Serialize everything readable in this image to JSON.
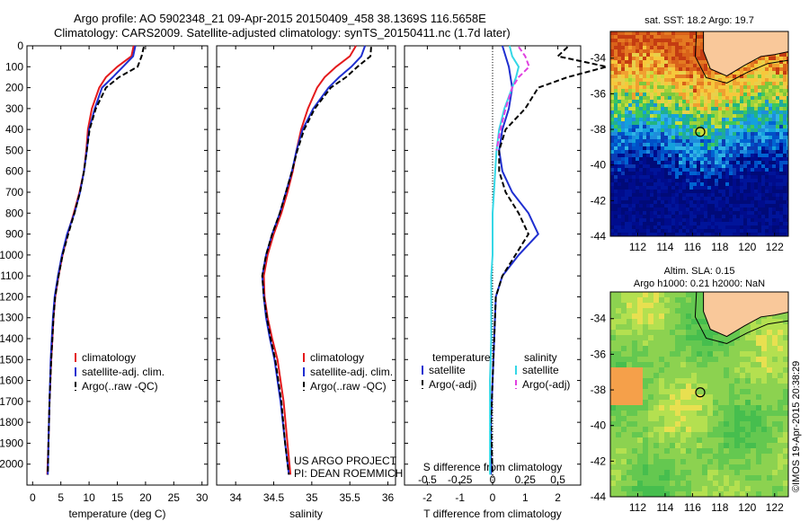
{
  "title": {
    "line1": "Argo profile: AO 5902348_21 09-Apr-2015 20150409_458 38.1369S 116.5658E",
    "line2": "Climatology: CARS2009. Satellite-adjusted climatology: synTS_20150411.nc (1.7d later)"
  },
  "footer_note": "US ARGO PROJECT",
  "footer_pi": "PI: DEAN ROEMMICH",
  "credit": "©IMOS 19-Apr-2015 20:38:29",
  "colors": {
    "climatology": "#e41a1c",
    "satellite": "#1f2fd0",
    "argo": "#000000",
    "salinity_sat": "#35d7e6",
    "salinity_argo": "#e040e0"
  },
  "chart_data": [
    {
      "type": "line",
      "xlabel": "temperature (deg C)",
      "ylabel": "",
      "xlim": [
        -1,
        31
      ],
      "ylim": [
        2100,
        0
      ],
      "xticks": [
        0,
        5,
        10,
        15,
        20,
        25,
        30
      ],
      "yticks": [
        0,
        100,
        200,
        300,
        400,
        500,
        600,
        700,
        800,
        900,
        1000,
        1100,
        1200,
        1300,
        1400,
        1500,
        1600,
        1700,
        1800,
        1900,
        2000
      ],
      "legend": [
        "climatology",
        "satellite-adj. clim.",
        "Argo(..raw -QC)"
      ],
      "series": [
        {
          "name": "climatology",
          "depth": [
            0,
            50,
            100,
            150,
            200,
            300,
            400,
            500,
            600,
            700,
            800,
            900,
            1000,
            1100,
            1200,
            1300,
            1400,
            1500,
            1700,
            1900,
            2050
          ],
          "values": [
            17.9,
            17.5,
            15.0,
            13.0,
            11.8,
            10.5,
            9.8,
            9.5,
            9.1,
            8.3,
            7.3,
            6.2,
            5.3,
            4.6,
            4.0,
            3.7,
            3.5,
            3.3,
            3.0,
            2.8,
            2.6
          ]
        },
        {
          "name": "satellite-adj. clim.",
          "depth": [
            0,
            50,
            100,
            150,
            200,
            300,
            400,
            500,
            600,
            700,
            800,
            900,
            1000,
            1100,
            1200,
            1300,
            1400,
            1500,
            1700,
            1900,
            2050
          ],
          "values": [
            18.2,
            17.8,
            16.0,
            14.2,
            12.3,
            11.0,
            10.0,
            9.6,
            9.1,
            8.4,
            7.4,
            6.1,
            5.2,
            4.5,
            3.9,
            3.6,
            3.4,
            3.2,
            3.0,
            2.8,
            2.7
          ]
        },
        {
          "name": "Argo(..raw -QC)",
          "depth": [
            5,
            50,
            100,
            150,
            200,
            300,
            400,
            500,
            600,
            700,
            800,
            900,
            1000,
            1100,
            1200,
            1300,
            1400,
            1500,
            1700,
            1900,
            2050
          ],
          "values": [
            19.7,
            19.3,
            18.6,
            15.3,
            13.0,
            11.2,
            10.1,
            9.6,
            9.1,
            8.4,
            7.4,
            6.3,
            5.3,
            4.6,
            4.0,
            3.7,
            3.5,
            3.3,
            3.0,
            2.8,
            2.7
          ]
        }
      ]
    },
    {
      "type": "line",
      "xlabel": "salinity",
      "ylabel": "",
      "xlim": [
        33.75,
        36.1
      ],
      "ylim": [
        2100,
        0
      ],
      "xticks": [
        34,
        34.5,
        35,
        35.5,
        36
      ],
      "legend": [
        "climatology",
        "satellite-adj. clim.",
        "Argo(..raw -QC)"
      ],
      "series": [
        {
          "name": "climatology",
          "depth": [
            0,
            50,
            100,
            150,
            200,
            300,
            400,
            500,
            600,
            700,
            800,
            900,
            1000,
            1100,
            1200,
            1300,
            1400,
            1500,
            1700,
            1900,
            2050
          ],
          "values": [
            35.58,
            35.5,
            35.32,
            35.17,
            35.07,
            34.95,
            34.86,
            34.8,
            34.75,
            34.68,
            34.6,
            34.5,
            34.42,
            34.37,
            34.38,
            34.42,
            34.48,
            34.55,
            34.63,
            34.68,
            34.72
          ]
        },
        {
          "name": "satellite-adj. clim.",
          "depth": [
            0,
            50,
            100,
            150,
            200,
            300,
            400,
            500,
            600,
            700,
            800,
            900,
            1000,
            1100,
            1200,
            1300,
            1400,
            1500,
            1700,
            1900,
            2050
          ],
          "values": [
            35.7,
            35.65,
            35.52,
            35.36,
            35.22,
            35.02,
            34.88,
            34.8,
            34.74,
            34.66,
            34.58,
            34.48,
            34.4,
            34.35,
            34.37,
            34.4,
            34.45,
            34.51,
            34.59,
            34.65,
            34.7
          ]
        },
        {
          "name": "Argo(..raw -QC)",
          "depth": [
            5,
            50,
            100,
            150,
            200,
            300,
            400,
            500,
            600,
            700,
            800,
            900,
            1000,
            1100,
            1200,
            1300,
            1400,
            1500,
            1700,
            1900,
            2050
          ],
          "values": [
            35.78,
            35.77,
            35.6,
            35.45,
            35.25,
            35.04,
            34.9,
            34.81,
            34.74,
            34.66,
            34.58,
            34.48,
            34.4,
            34.35,
            34.37,
            34.41,
            34.46,
            34.52,
            34.6,
            34.65,
            34.7
          ]
        }
      ]
    },
    {
      "type": "line",
      "xlabel": "T difference from climatology",
      "x2label": "S difference from climatology",
      "xlim": [
        -2.7,
        2.7
      ],
      "ylim": [
        2100,
        0
      ],
      "xticks": [
        -2,
        -1,
        0,
        1,
        2
      ],
      "xticklabels": [
        "-2",
        "-1",
        "0",
        "1",
        "2"
      ],
      "x2ticks": [
        -0.5,
        -0.25,
        0,
        0.25,
        0.5
      ],
      "x2ticklabels": [
        "-0.5",
        "-0.25",
        "0",
        "0.25",
        "0.5"
      ],
      "legend_headers": [
        "temperature",
        "salinity"
      ],
      "legend": [
        "satellite",
        "Argo(-adj)",
        "satellite",
        "Argo(-adj)"
      ],
      "series": [
        {
          "name": "satellite",
          "group": "temperature",
          "depth": [
            0,
            100,
            200,
            300,
            400,
            500,
            600,
            700,
            800,
            900,
            1000,
            1100,
            1200,
            1400,
            1600,
            1800,
            2050
          ],
          "values": [
            0.3,
            0.5,
            0.6,
            0.5,
            0.3,
            0.2,
            0.3,
            0.6,
            1.1,
            1.4,
            0.8,
            0.3,
            0.1,
            0.05,
            0.0,
            -0.05,
            -0.05
          ]
        },
        {
          "name": "Argo(-adj)",
          "group": "temperature",
          "depth": [
            5,
            50,
            100,
            150,
            200,
            300,
            400,
            500,
            600,
            700,
            800,
            900,
            1000,
            1100,
            1200,
            1400,
            1600,
            1800,
            2050
          ],
          "values": [
            2.3,
            2.0,
            3.5,
            2.3,
            1.4,
            1.0,
            0.4,
            0.2,
            0.2,
            0.4,
            0.8,
            1.1,
            0.7,
            0.3,
            0.1,
            0.05,
            0.0,
            -0.05,
            0.0
          ]
        },
        {
          "name": "satellite",
          "group": "salinity",
          "depth": [
            0,
            50,
            100,
            150,
            200,
            300,
            400,
            500,
            600,
            700,
            800,
            900,
            1000,
            1100,
            1200,
            1400,
            1600,
            1800,
            2050
          ],
          "values": [
            0.13,
            0.15,
            0.2,
            0.18,
            0.15,
            0.09,
            0.05,
            0.03,
            0.02,
            0.01,
            0.0,
            0.0,
            0.0,
            -0.01,
            -0.01,
            -0.01,
            -0.02,
            -0.02,
            -0.02
          ]
        },
        {
          "name": "Argo(-adj)",
          "group": "salinity",
          "depth": [
            5,
            50,
            100,
            150,
            200,
            300,
            400,
            500
          ],
          "values": [
            0.2,
            0.25,
            0.28,
            0.2,
            0.15,
            0.1,
            0.06,
            0.03
          ]
        }
      ]
    },
    {
      "type": "heatmap",
      "title": "sat. SST: 18.2 Argo: 19.7",
      "xlim": [
        110,
        123
      ],
      "ylim": [
        -44,
        -32.5
      ],
      "xticks": [
        112,
        114,
        116,
        118,
        120,
        122
      ],
      "yticks": [
        -34,
        -36,
        -38,
        -40,
        -42,
        -44
      ],
      "marker": {
        "lon": 116.5658,
        "lat": -38.1369
      }
    },
    {
      "type": "heatmap",
      "title": "Altim. SLA: 0.15",
      "subtitle": "Argo h1000: 0.21 h2000: NaN",
      "xlim": [
        110,
        123
      ],
      "ylim": [
        -44,
        -32.5
      ],
      "xticks": [
        112,
        114,
        116,
        118,
        120,
        122
      ],
      "yticks": [
        -34,
        -36,
        -38,
        -40,
        -42,
        -44
      ],
      "marker": {
        "lon": 116.5658,
        "lat": -38.1369
      }
    }
  ]
}
